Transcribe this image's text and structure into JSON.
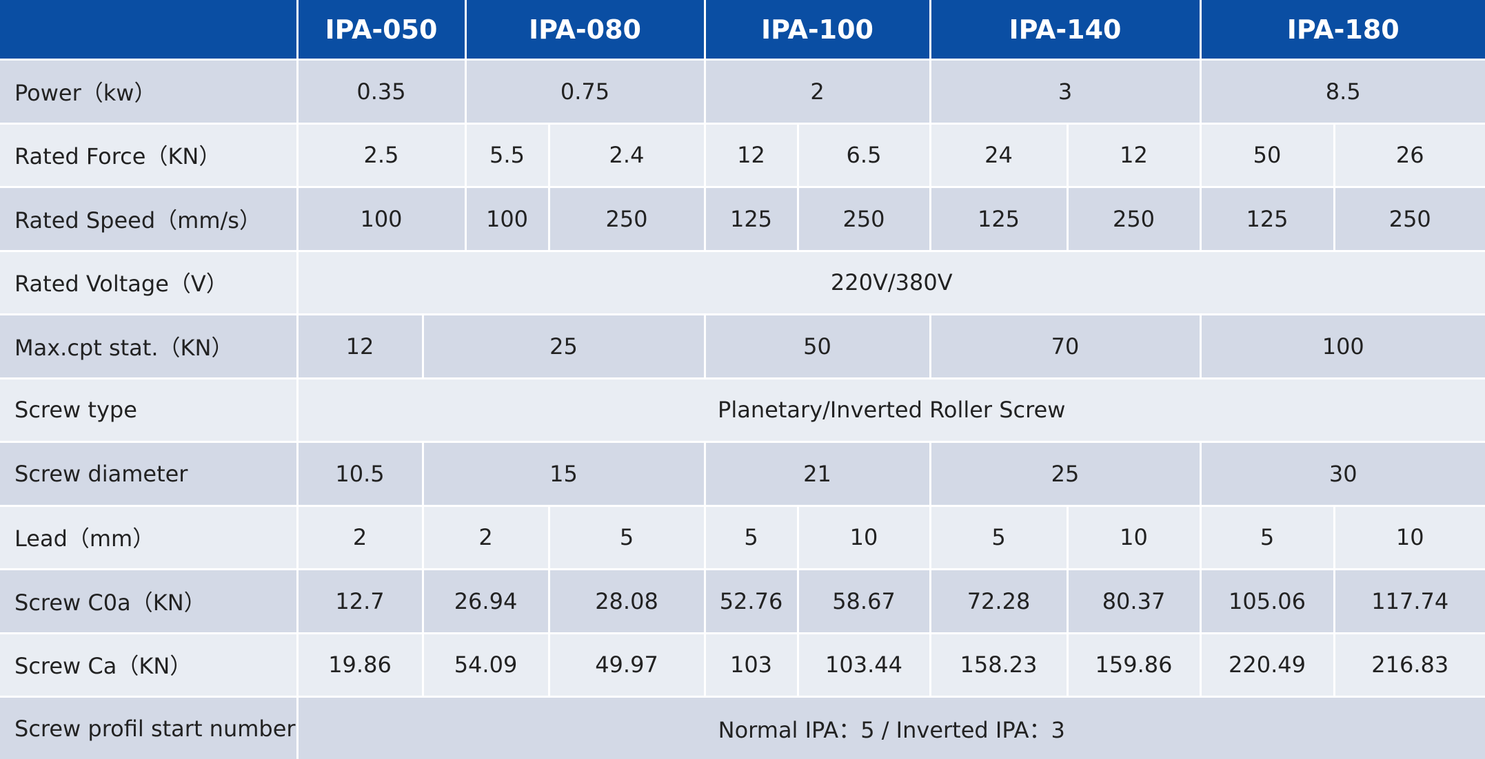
{
  "colors": {
    "header_bg": "#0a4ea3",
    "row_dark": "#d3d9e6",
    "row_light": "#e9edf3",
    "grid_line": "#ffffff"
  },
  "header": [
    "",
    "IPA-050",
    "IPA-080",
    "IPA-100",
    "IPA-140",
    "IPA-180"
  ],
  "rows": [
    {
      "label": "Power（kw）",
      "cells": [
        {
          "v": "0.35",
          "span": [
            1,
            2
          ]
        },
        {
          "v": "0.75",
          "span": [
            3,
            4
          ]
        },
        {
          "v": "2",
          "span": [
            5,
            6
          ]
        },
        {
          "v": "3",
          "span": [
            7,
            8
          ]
        },
        {
          "v": "8.5",
          "span": [
            9,
            10
          ]
        }
      ]
    },
    {
      "label": "Rated Force（KN）",
      "cells": [
        {
          "v": "2.5",
          "span": [
            1,
            2
          ]
        },
        {
          "v": "5.5",
          "span": [
            3,
            3
          ]
        },
        {
          "v": "2.4",
          "span": [
            4,
            4
          ]
        },
        {
          "v": "12",
          "span": [
            5,
            5
          ]
        },
        {
          "v": "6.5",
          "span": [
            6,
            6
          ]
        },
        {
          "v": "24",
          "span": [
            7,
            7
          ]
        },
        {
          "v": "12",
          "span": [
            8,
            8
          ]
        },
        {
          "v": "50",
          "span": [
            9,
            9
          ]
        },
        {
          "v": "26",
          "span": [
            10,
            10
          ]
        }
      ]
    },
    {
      "label": "Rated Speed（mm/s）",
      "cells": [
        {
          "v": "100",
          "span": [
            1,
            2
          ]
        },
        {
          "v": "100",
          "span": [
            3,
            3
          ]
        },
        {
          "v": "250",
          "span": [
            4,
            4
          ]
        },
        {
          "v": "125",
          "span": [
            5,
            5
          ]
        },
        {
          "v": "250",
          "span": [
            6,
            6
          ]
        },
        {
          "v": "125",
          "span": [
            7,
            7
          ]
        },
        {
          "v": "250",
          "span": [
            8,
            8
          ]
        },
        {
          "v": "125",
          "span": [
            9,
            9
          ]
        },
        {
          "v": "250",
          "span": [
            10,
            10
          ]
        }
      ]
    },
    {
      "label": "Rated Voltage（V）",
      "cells": [
        {
          "v": "220V/380V",
          "span": [
            1,
            10
          ]
        }
      ]
    },
    {
      "label": "Max.cpt stat.（KN）",
      "cells": [
        {
          "v": "12",
          "span": [
            1,
            1
          ]
        },
        {
          "v": "25",
          "span": [
            2,
            4
          ]
        },
        {
          "v": "50",
          "span": [
            5,
            6
          ]
        },
        {
          "v": "70",
          "span": [
            7,
            8
          ]
        },
        {
          "v": "100",
          "span": [
            9,
            10
          ]
        }
      ]
    },
    {
      "label": "Screw type",
      "cells": [
        {
          "v": "Planetary/Inverted Roller Screw",
          "span": [
            1,
            10
          ]
        }
      ]
    },
    {
      "label": "Screw diameter",
      "cells": [
        {
          "v": "10.5",
          "span": [
            1,
            1
          ]
        },
        {
          "v": "15",
          "span": [
            2,
            4
          ]
        },
        {
          "v": "21",
          "span": [
            5,
            6
          ]
        },
        {
          "v": "25",
          "span": [
            7,
            8
          ]
        },
        {
          "v": "30",
          "span": [
            9,
            10
          ]
        }
      ]
    },
    {
      "label": "Lead（mm）",
      "cells": [
        {
          "v": "2",
          "span": [
            1,
            1
          ]
        },
        {
          "v": "2",
          "span": [
            2,
            3
          ]
        },
        {
          "v": "5",
          "span": [
            4,
            4
          ]
        },
        {
          "v": "5",
          "span": [
            5,
            5
          ]
        },
        {
          "v": "10",
          "span": [
            6,
            6
          ]
        },
        {
          "v": "5",
          "span": [
            7,
            7
          ]
        },
        {
          "v": "10",
          "span": [
            8,
            8
          ]
        },
        {
          "v": "5",
          "span": [
            9,
            9
          ]
        },
        {
          "v": "10",
          "span": [
            10,
            10
          ]
        }
      ]
    },
    {
      "label": "Screw C0a（KN）",
      "cells": [
        {
          "v": "12.7",
          "span": [
            1,
            1
          ]
        },
        {
          "v": "26.94",
          "span": [
            2,
            3
          ]
        },
        {
          "v": "28.08",
          "span": [
            4,
            4
          ]
        },
        {
          "v": "52.76",
          "span": [
            5,
            5
          ]
        },
        {
          "v": "58.67",
          "span": [
            6,
            6
          ]
        },
        {
          "v": "72.28",
          "span": [
            7,
            7
          ]
        },
        {
          "v": "80.37",
          "span": [
            8,
            8
          ]
        },
        {
          "v": "105.06",
          "span": [
            9,
            9
          ]
        },
        {
          "v": "117.74",
          "span": [
            10,
            10
          ]
        }
      ]
    },
    {
      "label": "Screw Ca（KN）",
      "cells": [
        {
          "v": "19.86",
          "span": [
            1,
            1
          ]
        },
        {
          "v": "54.09",
          "span": [
            2,
            3
          ]
        },
        {
          "v": "49.97",
          "span": [
            4,
            4
          ]
        },
        {
          "v": "103",
          "span": [
            5,
            5
          ]
        },
        {
          "v": "103.44",
          "span": [
            6,
            6
          ]
        },
        {
          "v": "158.23",
          "span": [
            7,
            7
          ]
        },
        {
          "v": "159.86",
          "span": [
            8,
            8
          ]
        },
        {
          "v": "220.49",
          "span": [
            9,
            9
          ]
        },
        {
          "v": "216.83",
          "span": [
            10,
            10
          ]
        }
      ]
    },
    {
      "label": "Screw profil start number",
      "cells": [
        {
          "v": "Normal IPA：5 / Inverted IPA：3",
          "span": [
            1,
            10
          ]
        }
      ]
    }
  ]
}
